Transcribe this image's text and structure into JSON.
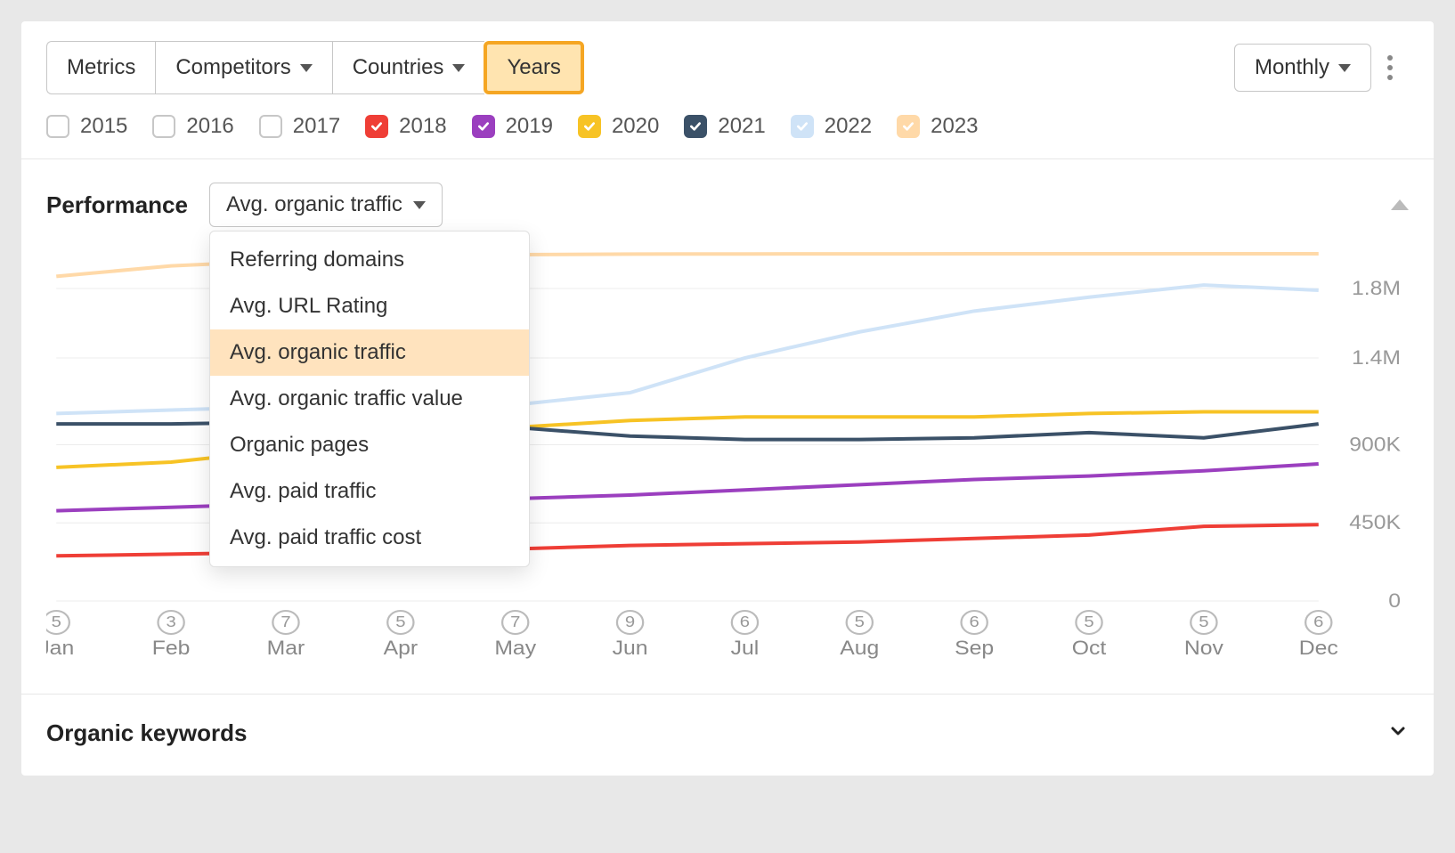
{
  "toolbar": {
    "metrics": "Metrics",
    "competitors": "Competitors",
    "countries": "Countries",
    "years": "Years",
    "monthly": "Monthly"
  },
  "years": [
    {
      "label": "2015",
      "checked": false,
      "color": null
    },
    {
      "label": "2016",
      "checked": false,
      "color": null
    },
    {
      "label": "2017",
      "checked": false,
      "color": null
    },
    {
      "label": "2018",
      "checked": true,
      "color": "#ef3e36"
    },
    {
      "label": "2019",
      "checked": true,
      "color": "#9b3fbf"
    },
    {
      "label": "2020",
      "checked": true,
      "color": "#f7c325"
    },
    {
      "label": "2021",
      "checked": true,
      "color": "#3b5168"
    },
    {
      "label": "2022",
      "checked": true,
      "color": "#cfe3f7"
    },
    {
      "label": "2023",
      "checked": true,
      "color": "#ffd9a8"
    }
  ],
  "performance": {
    "title": "Performance",
    "selected_metric": "Avg. organic traffic",
    "metrics": [
      "Referring domains",
      "Avg. URL Rating",
      "Avg. organic traffic",
      "Avg. organic traffic value",
      "Organic pages",
      "Avg. paid traffic",
      "Avg. paid traffic cost"
    ]
  },
  "chart": {
    "type": "line",
    "x_categories": [
      "Jan",
      "Feb",
      "Mar",
      "Apr",
      "May",
      "Jun",
      "Jul",
      "Aug",
      "Sep",
      "Oct",
      "Nov",
      "Dec"
    ],
    "x_sub_numbers": [
      5,
      3,
      7,
      5,
      7,
      9,
      6,
      5,
      6,
      5,
      5,
      6
    ],
    "y_ticks": [
      0,
      450000,
      900000,
      1400000,
      1800000
    ],
    "y_tick_labels": [
      "0",
      "450K",
      "900K",
      "1.4M",
      "1.8M"
    ],
    "y_max": 2000000,
    "background_color": "#ffffff",
    "grid_color": "#ececec",
    "line_width": 4,
    "series": [
      {
        "name": "2018",
        "color": "#ef3e36",
        "values": [
          260000,
          270000,
          280000,
          290000,
          300000,
          320000,
          330000,
          340000,
          360000,
          380000,
          430000,
          440000
        ]
      },
      {
        "name": "2019",
        "color": "#9b3fbf",
        "values": [
          520000,
          540000,
          560000,
          570000,
          590000,
          610000,
          640000,
          670000,
          700000,
          720000,
          750000,
          790000
        ]
      },
      {
        "name": "2020",
        "color": "#f7c325",
        "values": [
          770000,
          800000,
          870000,
          920000,
          1000000,
          1040000,
          1060000,
          1060000,
          1060000,
          1080000,
          1090000,
          1090000
        ]
      },
      {
        "name": "2021",
        "color": "#3b5168",
        "values": [
          1020000,
          1020000,
          1030000,
          1020000,
          1000000,
          950000,
          930000,
          930000,
          940000,
          970000,
          940000,
          1020000
        ]
      },
      {
        "name": "2022",
        "color": "#cfe3f7",
        "values": [
          1080000,
          1100000,
          1120000,
          1120000,
          1130000,
          1200000,
          1400000,
          1550000,
          1670000,
          1750000,
          1820000,
          1790000
        ]
      },
      {
        "name": "2023",
        "color": "#ffd9a8",
        "values": [
          1870000,
          1930000,
          1960000,
          1990000,
          1995000,
          1998000,
          1999000,
          1999500,
          1999700,
          1999800,
          1999900,
          1999950
        ]
      }
    ]
  },
  "sections": {
    "organic_keywords": "Organic keywords"
  }
}
